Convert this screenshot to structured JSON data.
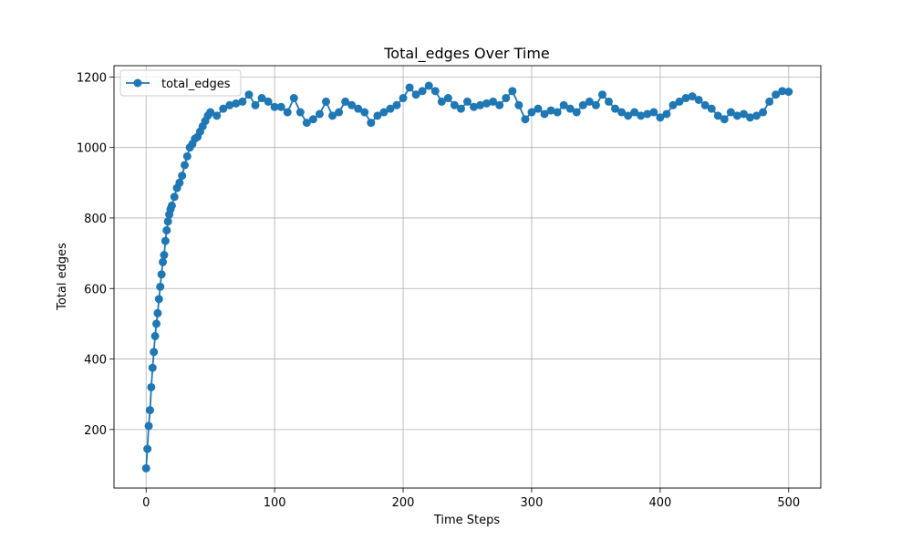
{
  "chart_data": {
    "type": "line",
    "title": "Total_edges Over Time",
    "xlabel": "Time Steps",
    "ylabel": "Total edges",
    "xlim": [
      -25,
      525
    ],
    "ylim": [
      34,
      1232
    ],
    "xticks": [
      0,
      100,
      200,
      300,
      400,
      500
    ],
    "yticks": [
      200,
      400,
      600,
      800,
      1000,
      1200
    ],
    "grid": true,
    "legend_position": "upper-left",
    "series": [
      {
        "name": "total_edges",
        "color": "#1f77b4",
        "marker": "circle",
        "x": [
          0,
          1,
          2,
          3,
          4,
          5,
          6,
          7,
          8,
          9,
          10,
          11,
          12,
          13,
          14,
          15,
          16,
          17,
          18,
          19,
          20,
          22,
          24,
          26,
          28,
          30,
          32,
          34,
          36,
          38,
          40,
          42,
          44,
          46,
          48,
          50,
          55,
          60,
          65,
          70,
          75,
          80,
          85,
          90,
          95,
          100,
          105,
          110,
          115,
          120,
          125,
          130,
          135,
          140,
          145,
          150,
          155,
          160,
          165,
          170,
          175,
          180,
          185,
          190,
          195,
          200,
          205,
          210,
          215,
          220,
          225,
          230,
          235,
          240,
          245,
          250,
          255,
          260,
          265,
          270,
          275,
          280,
          285,
          290,
          295,
          300,
          305,
          310,
          315,
          320,
          325,
          330,
          335,
          340,
          345,
          350,
          355,
          360,
          365,
          370,
          375,
          380,
          385,
          390,
          395,
          400,
          405,
          410,
          415,
          420,
          425,
          430,
          435,
          440,
          445,
          450,
          455,
          460,
          465,
          470,
          475,
          480,
          485,
          490,
          495,
          500
        ],
        "y": [
          90,
          145,
          210,
          255,
          320,
          375,
          420,
          465,
          500,
          530,
          570,
          605,
          640,
          675,
          695,
          735,
          765,
          790,
          810,
          825,
          835,
          860,
          885,
          900,
          920,
          950,
          975,
          1000,
          1010,
          1025,
          1030,
          1045,
          1060,
          1075,
          1090,
          1100,
          1090,
          1110,
          1120,
          1125,
          1130,
          1150,
          1120,
          1140,
          1130,
          1115,
          1115,
          1100,
          1140,
          1100,
          1070,
          1080,
          1095,
          1130,
          1090,
          1100,
          1130,
          1120,
          1110,
          1100,
          1070,
          1090,
          1100,
          1110,
          1120,
          1140,
          1170,
          1150,
          1160,
          1175,
          1160,
          1130,
          1140,
          1120,
          1110,
          1130,
          1115,
          1120,
          1125,
          1130,
          1120,
          1140,
          1160,
          1120,
          1080,
          1100,
          1110,
          1095,
          1105,
          1100,
          1120,
          1110,
          1100,
          1120,
          1130,
          1120,
          1150,
          1130,
          1110,
          1100,
          1090,
          1100,
          1090,
          1095,
          1100,
          1085,
          1095,
          1120,
          1130,
          1140,
          1145,
          1135,
          1120,
          1110,
          1090,
          1080,
          1100,
          1090,
          1095,
          1085,
          1090,
          1100,
          1130,
          1150,
          1160,
          1158
        ]
      }
    ]
  }
}
